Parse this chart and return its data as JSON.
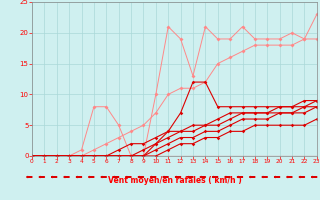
{
  "xlabel": "Vent moyen/en rafales ( km/h )",
  "xlim": [
    0,
    23
  ],
  "ylim": [
    0,
    25
  ],
  "xticks": [
    0,
    1,
    2,
    3,
    4,
    5,
    6,
    7,
    8,
    9,
    10,
    11,
    12,
    13,
    14,
    15,
    16,
    17,
    18,
    19,
    20,
    21,
    22,
    23
  ],
  "yticks": [
    0,
    5,
    10,
    15,
    20,
    25
  ],
  "bg_color": "#cff0f0",
  "grid_color": "#aad8d8",
  "line_color_dark": "#dd0000",
  "line_color_light": "#ff8888",
  "series_light_1": [
    0,
    0,
    0,
    0,
    1,
    8,
    8,
    5,
    0,
    0,
    10,
    21,
    19,
    13,
    21,
    19,
    19,
    21,
    19,
    19,
    19,
    20,
    19,
    23
  ],
  "series_light_2": [
    0,
    0,
    0,
    0,
    0,
    1,
    2,
    3,
    4,
    5,
    7,
    10,
    11,
    11,
    12,
    15,
    16,
    17,
    18,
    18,
    18,
    18,
    19,
    19
  ],
  "series_dark_1": [
    0,
    0,
    0,
    0,
    0,
    0,
    0,
    0,
    0,
    1,
    2,
    4,
    7,
    12,
    12,
    8,
    8,
    8,
    8,
    8,
    8,
    8,
    9,
    9
  ],
  "series_dark_2": [
    0,
    0,
    0,
    0,
    0,
    0,
    0,
    1,
    2,
    2,
    3,
    4,
    4,
    4,
    5,
    6,
    7,
    7,
    7,
    7,
    8,
    8,
    8,
    9
  ],
  "series_dark_3": [
    0,
    0,
    0,
    0,
    0,
    0,
    0,
    0,
    0,
    0,
    2,
    3,
    4,
    5,
    5,
    5,
    6,
    7,
    7,
    7,
    7,
    7,
    8,
    8
  ],
  "series_dark_4": [
    0,
    0,
    0,
    0,
    0,
    0,
    0,
    0,
    0,
    0,
    1,
    2,
    3,
    3,
    4,
    4,
    5,
    6,
    6,
    6,
    7,
    7,
    7,
    8
  ],
  "series_dark_5": [
    0,
    0,
    0,
    0,
    0,
    0,
    0,
    0,
    0,
    0,
    0,
    1,
    2,
    2,
    3,
    3,
    4,
    4,
    5,
    5,
    5,
    5,
    5,
    6
  ]
}
